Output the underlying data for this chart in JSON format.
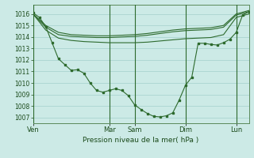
{
  "background_color": "#cceae6",
  "grid_color": "#b0d8d4",
  "line_color": "#2d6a2d",
  "title": "Pression niveau de la mer( hPa )",
  "ylim": [
    1006.5,
    1016.8
  ],
  "yticks": [
    1007,
    1008,
    1009,
    1010,
    1011,
    1012,
    1013,
    1014,
    1015,
    1016
  ],
  "xlim": [
    0,
    34
  ],
  "day_labels": [
    "Ven",
    "",
    "Mar",
    "Sam",
    "",
    "Dim",
    "",
    "Lun"
  ],
  "day_tick_labels": [
    "Ven",
    "Mar",
    "Sam",
    "Dim",
    "Lun"
  ],
  "day_tick_positions": [
    0,
    12,
    16,
    24,
    32
  ],
  "vline_positions": [
    0,
    12,
    16,
    24,
    32
  ],
  "series_flat1": {
    "x": [
      0,
      2,
      4,
      6,
      8,
      10,
      12,
      14,
      16,
      18,
      20,
      22,
      24,
      26,
      28,
      30,
      32,
      34
    ],
    "y": [
      1016.0,
      1015.0,
      1014.4,
      1014.2,
      1014.15,
      1014.1,
      1014.1,
      1014.15,
      1014.2,
      1014.3,
      1014.45,
      1014.6,
      1014.7,
      1014.75,
      1014.8,
      1015.0,
      1016.0,
      1016.3
    ]
  },
  "series_flat2": {
    "x": [
      0,
      2,
      4,
      6,
      8,
      10,
      12,
      14,
      16,
      18,
      20,
      22,
      24,
      26,
      28,
      30,
      32,
      34
    ],
    "y": [
      1016.0,
      1014.85,
      1014.2,
      1014.05,
      1014.0,
      1013.95,
      1013.95,
      1014.0,
      1014.05,
      1014.15,
      1014.3,
      1014.45,
      1014.55,
      1014.6,
      1014.65,
      1014.85,
      1015.9,
      1016.2
    ]
  },
  "series_flat3": {
    "x": [
      0,
      2,
      4,
      6,
      8,
      10,
      12,
      14,
      16,
      18,
      20,
      22,
      24,
      26,
      28,
      30,
      32,
      34
    ],
    "y": [
      1016.0,
      1014.6,
      1013.9,
      1013.7,
      1013.6,
      1013.55,
      1013.5,
      1013.5,
      1013.5,
      1013.55,
      1013.65,
      1013.75,
      1013.85,
      1013.9,
      1013.95,
      1014.2,
      1015.7,
      1016.0
    ]
  },
  "series_main_x": [
    0,
    1,
    2,
    3,
    4,
    5,
    6,
    7,
    8,
    9,
    10,
    11,
    12,
    13,
    14,
    15,
    16,
    17,
    18,
    19,
    20,
    21,
    22,
    23,
    24,
    25,
    26,
    27,
    28,
    29,
    30,
    31,
    32,
    33,
    34
  ],
  "series_main_y": [
    1016.1,
    1015.7,
    1014.9,
    1013.5,
    1012.1,
    1011.6,
    1011.1,
    1011.15,
    1010.85,
    1010.0,
    1009.35,
    1009.2,
    1009.35,
    1009.5,
    1009.35,
    1008.9,
    1008.1,
    1007.7,
    1007.35,
    1007.1,
    1007.05,
    1007.15,
    1007.4,
    1008.5,
    1009.8,
    1010.5,
    1013.45,
    1013.45,
    1013.35,
    1013.3,
    1013.5,
    1013.8,
    1014.4,
    1015.9,
    1016.2
  ]
}
